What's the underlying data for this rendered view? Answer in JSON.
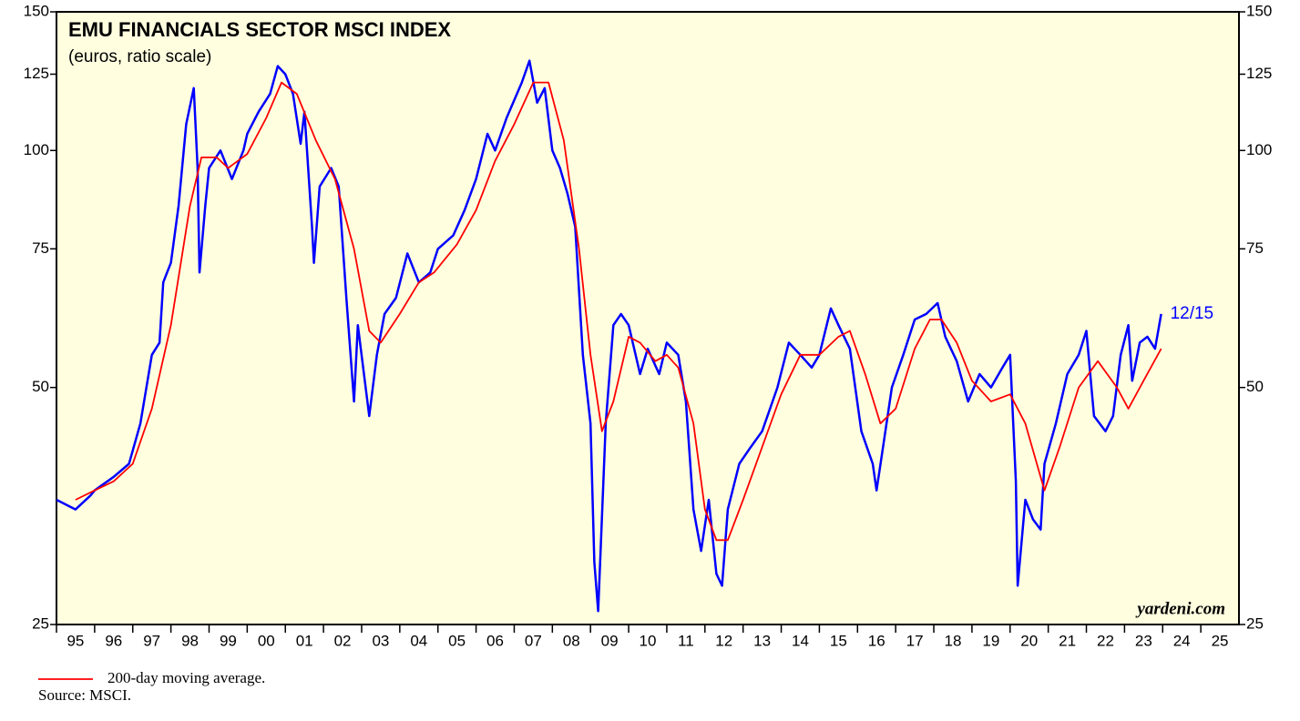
{
  "chart_data": {
    "type": "line",
    "title": "EMU FINANCIALS SECTOR MSCI INDEX",
    "subtitle": "(euros, ratio scale)",
    "annotation": "12/15",
    "watermark": "yardeni.com",
    "source": "Source: MSCI.",
    "yscale": "log",
    "ylim": [
      25,
      150
    ],
    "yticks": [
      25,
      50,
      75,
      100,
      125,
      150
    ],
    "xlim": [
      1995,
      2026
    ],
    "xticks": [
      {
        "value": 1995,
        "label": "95"
      },
      {
        "value": 1996,
        "label": "96"
      },
      {
        "value": 1997,
        "label": "97"
      },
      {
        "value": 1998,
        "label": "98"
      },
      {
        "value": 1999,
        "label": "99"
      },
      {
        "value": 2000,
        "label": "00"
      },
      {
        "value": 2001,
        "label": "01"
      },
      {
        "value": 2002,
        "label": "02"
      },
      {
        "value": 2003,
        "label": "03"
      },
      {
        "value": 2004,
        "label": "04"
      },
      {
        "value": 2005,
        "label": "05"
      },
      {
        "value": 2006,
        "label": "06"
      },
      {
        "value": 2007,
        "label": "07"
      },
      {
        "value": 2008,
        "label": "08"
      },
      {
        "value": 2009,
        "label": "09"
      },
      {
        "value": 2010,
        "label": "10"
      },
      {
        "value": 2011,
        "label": "11"
      },
      {
        "value": 2012,
        "label": "12"
      },
      {
        "value": 2013,
        "label": "13"
      },
      {
        "value": 2014,
        "label": "14"
      },
      {
        "value": 2015,
        "label": "15"
      },
      {
        "value": 2016,
        "label": "16"
      },
      {
        "value": 2017,
        "label": "17"
      },
      {
        "value": 2018,
        "label": "18"
      },
      {
        "value": 2019,
        "label": "19"
      },
      {
        "value": 2020,
        "label": "20"
      },
      {
        "value": 2021,
        "label": "21"
      },
      {
        "value": 2022,
        "label": "22"
      },
      {
        "value": 2023,
        "label": "23"
      },
      {
        "value": 2024,
        "label": "24"
      },
      {
        "value": 2025,
        "label": "25"
      }
    ],
    "series": [
      {
        "color": "#0000ff",
        "x": [
          1995.0,
          1995.5,
          1995.9,
          1996.0,
          1996.5,
          1996.9,
          1997.2,
          1997.5,
          1997.7,
          1997.8,
          1997.9,
          1998.0,
          1998.2,
          1998.4,
          1998.6,
          1998.7,
          1998.75,
          1998.9,
          1999.0,
          1999.3,
          1999.6,
          1999.9,
          2000.0,
          2000.3,
          2000.6,
          2000.8,
          2001.0,
          2001.2,
          2001.4,
          2001.5,
          2001.7,
          2001.75,
          2001.9,
          2002.2,
          2002.4,
          2002.6,
          2002.8,
          2002.9,
          2003.2,
          2003.4,
          2003.6,
          2003.9,
          2004.2,
          2004.5,
          2004.8,
          2005.0,
          2005.4,
          2005.7,
          2006.0,
          2006.3,
          2006.5,
          2006.8,
          2007.2,
          2007.4,
          2007.6,
          2007.8,
          2008.0,
          2008.2,
          2008.4,
          2008.6,
          2008.8,
          2009.0,
          2009.1,
          2009.2,
          2009.4,
          2009.6,
          2009.8,
          2010.0,
          2010.3,
          2010.5,
          2010.8,
          2011.0,
          2011.3,
          2011.5,
          2011.7,
          2011.9,
          2012.1,
          2012.3,
          2012.45,
          2012.6,
          2012.9,
          2013.2,
          2013.5,
          2013.9,
          2014.2,
          2014.5,
          2014.8,
          2015.0,
          2015.3,
          2015.5,
          2015.8,
          2016.1,
          2016.4,
          2016.5,
          2016.7,
          2016.9,
          2017.2,
          2017.5,
          2017.8,
          2018.1,
          2018.3,
          2018.6,
          2018.9,
          2019.2,
          2019.5,
          2019.8,
          2020.0,
          2020.15,
          2020.2,
          2020.4,
          2020.6,
          2020.8,
          2020.9,
          2021.2,
          2021.5,
          2021.8,
          2022.0,
          2022.2,
          2022.5,
          2022.7,
          2022.9,
          2023.1,
          2023.2,
          2023.4,
          2023.6,
          2023.8,
          2023.96
        ],
        "values": [
          36,
          35,
          36.5,
          37,
          38.5,
          40,
          45,
          55,
          57,
          68,
          70,
          72,
          85,
          108,
          120,
          95,
          70,
          85,
          95,
          100,
          92,
          100,
          105,
          112,
          118,
          128,
          125,
          118,
          102,
          112,
          80,
          72,
          90,
          95,
          90,
          65,
          48,
          60,
          46,
          55,
          62,
          65,
          74,
          68,
          70,
          75,
          78,
          84,
          92,
          105,
          100,
          110,
          122,
          130,
          115,
          120,
          100,
          95,
          88,
          80,
          55,
          45,
          30,
          26,
          45,
          60,
          62,
          60,
          52,
          56,
          52,
          57,
          55,
          48,
          35,
          31,
          36,
          29,
          28,
          35,
          40,
          42,
          44,
          50,
          57,
          55,
          53,
          55,
          63,
          60,
          56,
          44,
          40,
          37,
          43,
          50,
          55,
          61,
          62,
          64,
          58,
          54,
          48,
          52,
          50,
          53,
          55,
          38,
          28,
          36,
          34,
          33,
          40,
          45,
          52,
          55,
          59,
          46,
          44,
          46,
          55,
          60,
          51,
          57,
          58,
          56,
          62
        ]
      },
      {
        "name": "200-day moving average.",
        "color": "#ff0000",
        "x": [
          1995.5,
          1996.0,
          1996.5,
          1997.0,
          1997.5,
          1998.0,
          1998.5,
          1998.8,
          1999.2,
          1999.5,
          2000.0,
          2000.5,
          2000.9,
          2001.3,
          2001.8,
          2002.3,
          2002.8,
          2003.2,
          2003.5,
          2004.0,
          2004.5,
          2004.9,
          2005.5,
          2006.0,
          2006.5,
          2007.0,
          2007.5,
          2007.9,
          2008.3,
          2008.7,
          2009.0,
          2009.3,
          2009.6,
          2010.0,
          2010.3,
          2010.7,
          2011.0,
          2011.3,
          2011.7,
          2012.0,
          2012.3,
          2012.6,
          2013.0,
          2013.5,
          2014.0,
          2014.5,
          2015.0,
          2015.5,
          2015.8,
          2016.2,
          2016.6,
          2017.0,
          2017.5,
          2017.9,
          2018.2,
          2018.6,
          2019.0,
          2019.5,
          2020.0,
          2020.4,
          2020.9,
          2021.3,
          2021.8,
          2022.3,
          2022.8,
          2023.1,
          2023.5,
          2023.96
        ],
        "values": [
          36,
          37,
          38,
          40,
          47,
          60,
          85,
          98,
          98,
          95,
          99,
          110,
          122,
          118,
          103,
          92,
          75,
          59,
          57,
          62,
          68,
          70,
          76,
          84,
          97,
          108,
          122,
          122,
          103,
          75,
          55,
          44,
          48,
          58,
          57,
          54,
          55,
          53,
          45,
          35,
          32,
          32,
          36,
          42,
          49,
          55,
          55,
          58,
          59,
          52,
          45,
          47,
          56,
          61,
          61,
          57,
          51,
          48,
          49,
          45,
          37,
          42,
          50,
          54,
          50,
          47,
          51,
          56
        ]
      }
    ]
  }
}
